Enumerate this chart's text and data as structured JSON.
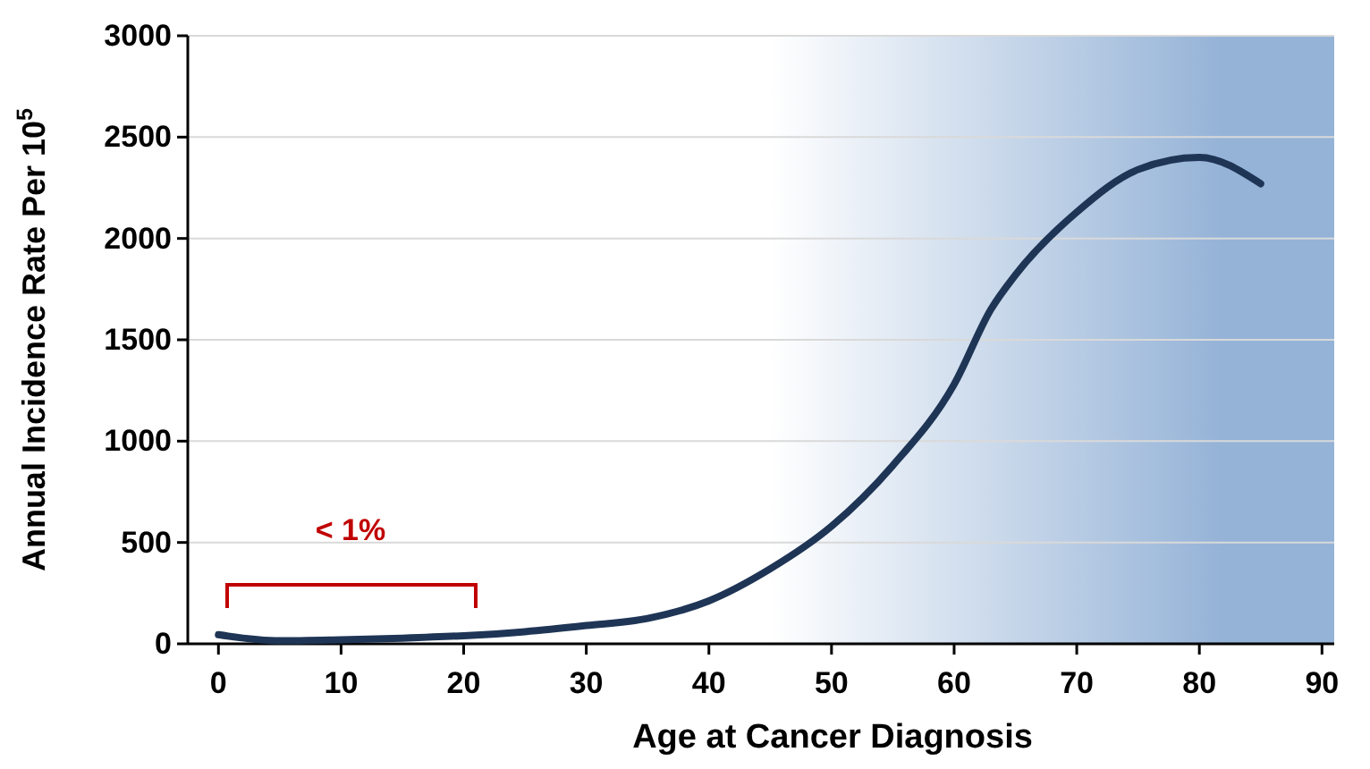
{
  "chart_data": {
    "type": "line",
    "xlabel": "Age at Cancer Diagnosis",
    "ylabel": "Annual Incidence Rate Per 10$^{5}$",
    "x": [
      0,
      5,
      10,
      15,
      20,
      25,
      30,
      35,
      40,
      45,
      50,
      55,
      60,
      63,
      65,
      70,
      75,
      80,
      85
    ],
    "series": [
      {
        "color": "#1f3556",
        "values": [
          45,
          15,
          20,
          28,
          40,
          60,
          90,
          125,
          212,
          370,
          580,
          880,
          1280,
          1650,
          1820,
          2130,
          2340,
          2400,
          2270
        ]
      }
    ],
    "xlim": [
      -2.5,
      91
    ],
    "xticks": [
      0,
      10,
      20,
      30,
      40,
      50,
      60,
      70,
      80,
      90
    ],
    "ylim": [
      0,
      3000
    ],
    "yticks": [
      0,
      500,
      1000,
      1500,
      2000,
      2500,
      3000
    ],
    "grid": "y",
    "marker": "none",
    "line_style": "solid",
    "bands": [
      {
        "axis": "x",
        "from": 45,
        "to": 91,
        "color": "#95b3d7"
      }
    ],
    "annotations": [
      "< 1%"
    ]
  }
}
